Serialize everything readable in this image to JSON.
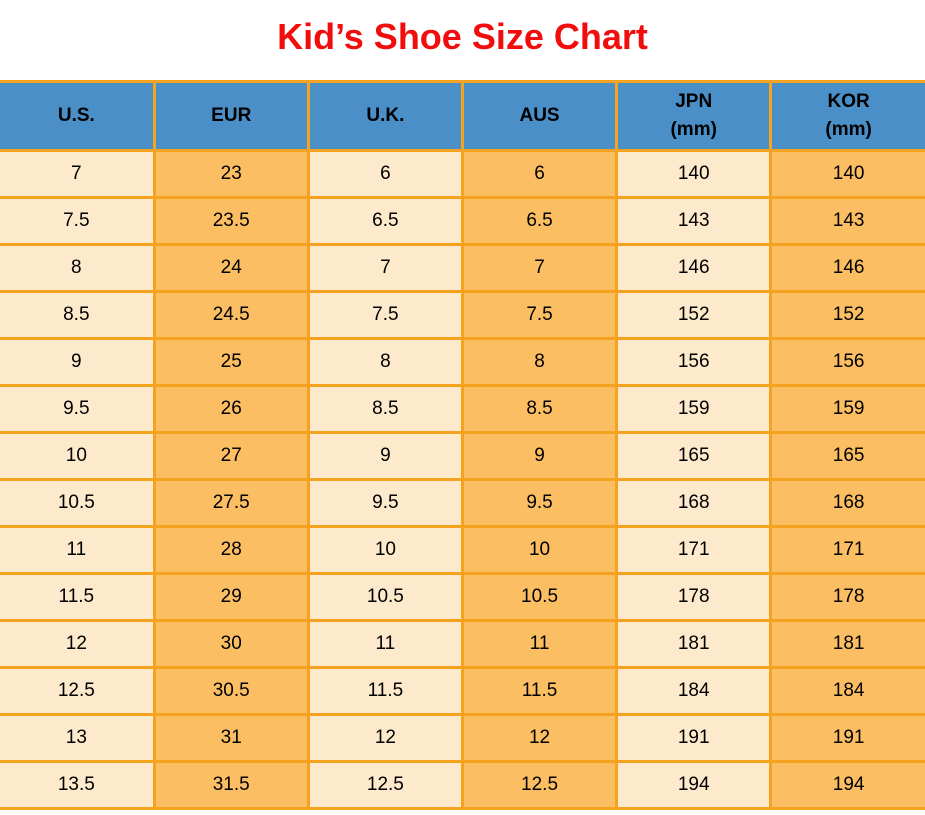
{
  "title": "Kid’s Shoe Size Chart",
  "colors": {
    "title": "#f20d0d",
    "header_bg": "#4a8fc7",
    "row_light": "#fde9cb",
    "row_orange": "#fcbe63",
    "border": "#f5a21f",
    "text": "#000000",
    "background": "#ffffff"
  },
  "table": {
    "headers": [
      {
        "label": "U.S.",
        "sub": ""
      },
      {
        "label": "EUR",
        "sub": ""
      },
      {
        "label": "U.K.",
        "sub": ""
      },
      {
        "label": "AUS",
        "sub": ""
      },
      {
        "label": "JPN",
        "sub": "(mm)"
      },
      {
        "label": "KOR",
        "sub": "(mm)"
      }
    ],
    "rows": [
      [
        "7",
        "23",
        "6",
        "6",
        "140",
        "140"
      ],
      [
        "7.5",
        "23.5",
        "6.5",
        "6.5",
        "143",
        "143"
      ],
      [
        "8",
        "24",
        "7",
        "7",
        "146",
        "146"
      ],
      [
        "8.5",
        "24.5",
        "7.5",
        "7.5",
        "152",
        "152"
      ],
      [
        "9",
        "25",
        "8",
        "8",
        "156",
        "156"
      ],
      [
        "9.5",
        "26",
        "8.5",
        "8.5",
        "159",
        "159"
      ],
      [
        "10",
        "27",
        "9",
        "9",
        "165",
        "165"
      ],
      [
        "10.5",
        "27.5",
        "9.5",
        "9.5",
        "168",
        "168"
      ],
      [
        "11",
        "28",
        "10",
        "10",
        "171",
        "171"
      ],
      [
        "11.5",
        "29",
        "10.5",
        "10.5",
        "178",
        "178"
      ],
      [
        "12",
        "30",
        "11",
        "11",
        "181",
        "181"
      ],
      [
        "12.5",
        "30.5",
        "11.5",
        "11.5",
        "184",
        "184"
      ],
      [
        "13",
        "31",
        "12",
        "12",
        "191",
        "191"
      ],
      [
        "13.5",
        "31.5",
        "12.5",
        "12.5",
        "194",
        "194"
      ]
    ]
  },
  "chart_data": {
    "type": "table",
    "title": "Kid’s Shoe Size Chart",
    "columns": [
      "U.S.",
      "EUR",
      "U.K.",
      "AUS",
      "JPN (mm)",
      "KOR (mm)"
    ],
    "rows": [
      [
        "7",
        "23",
        "6",
        "6",
        "140",
        "140"
      ],
      [
        "7.5",
        "23.5",
        "6.5",
        "6.5",
        "143",
        "143"
      ],
      [
        "8",
        "24",
        "7",
        "7",
        "146",
        "146"
      ],
      [
        "8.5",
        "24.5",
        "7.5",
        "7.5",
        "152",
        "152"
      ],
      [
        "9",
        "25",
        "8",
        "8",
        "156",
        "156"
      ],
      [
        "9.5",
        "26",
        "8.5",
        "8.5",
        "159",
        "159"
      ],
      [
        "10",
        "27",
        "9",
        "9",
        "165",
        "165"
      ],
      [
        "10.5",
        "27.5",
        "9.5",
        "9.5",
        "168",
        "168"
      ],
      [
        "11",
        "28",
        "10",
        "10",
        "171",
        "171"
      ],
      [
        "11.5",
        "29",
        "10.5",
        "10.5",
        "178",
        "178"
      ],
      [
        "12",
        "30",
        "11",
        "11",
        "181",
        "181"
      ],
      [
        "12.5",
        "30.5",
        "11.5",
        "11.5",
        "184",
        "184"
      ],
      [
        "13",
        "31",
        "12",
        "12",
        "191",
        "191"
      ],
      [
        "13.5",
        "31.5",
        "12.5",
        "12.5",
        "194",
        "194"
      ]
    ],
    "layout_hints": {
      "header_background": "#4a8fc7",
      "column_fill_pattern": [
        "#fde9cb",
        "#fcbe63",
        "#fde9cb",
        "#fcbe63",
        "#fde9cb",
        "#fcbe63"
      ],
      "grid_color": "#f5a21f",
      "title_color": "#f20d0d",
      "title_position": "top-center"
    }
  }
}
